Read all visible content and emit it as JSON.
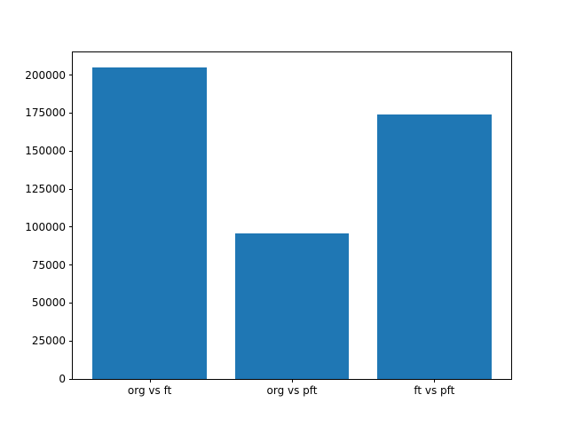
{
  "chart_data": {
    "type": "bar",
    "categories": [
      "org vs ft",
      "org vs pft",
      "ft vs pft"
    ],
    "values": [
      205000,
      96000,
      174000
    ],
    "title": "",
    "xlabel": "",
    "ylabel": "",
    "ylim": [
      0,
      215000
    ],
    "xlim": [
      -0.54,
      2.54
    ],
    "yticks": [
      0,
      25000,
      50000,
      75000,
      100000,
      125000,
      150000,
      175000,
      200000
    ],
    "bar_color": "#1f77b4",
    "bar_width": 0.8,
    "grid": false,
    "legend": null,
    "background_color": "#ffffff",
    "spine_color": "#000000"
  }
}
